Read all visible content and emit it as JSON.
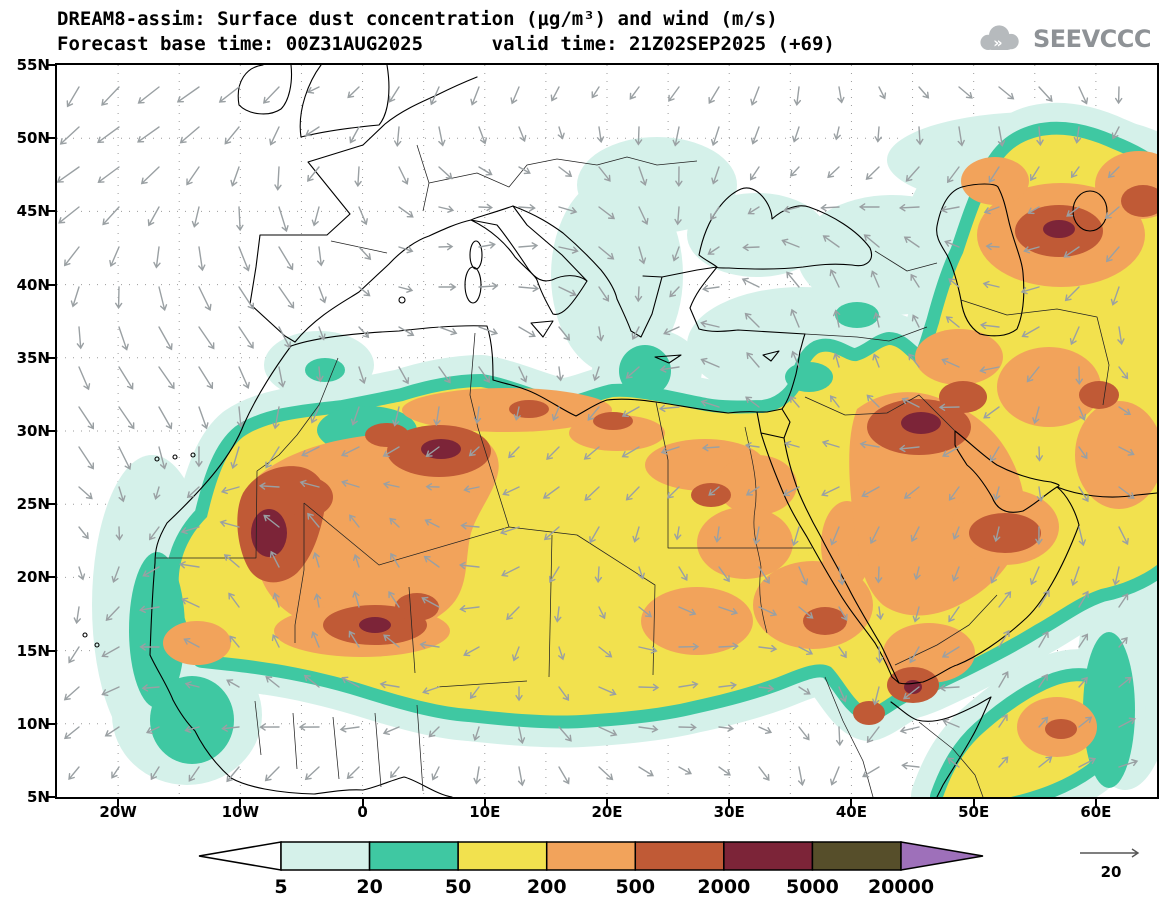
{
  "header": {
    "title_line1": "DREAM8-assim: Surface dust concentration (μg/m³) and wind (m/s)",
    "title_line2": "Forecast base time: 00Z31AUG2025      valid time: 21Z02SEP2025 (+69)",
    "logo_text": "SEEVCCC"
  },
  "axes": {
    "lat": [
      "55N",
      "50N",
      "45N",
      "40N",
      "35N",
      "30N",
      "25N",
      "20N",
      "15N",
      "10N",
      "5N"
    ],
    "lon": [
      "20W",
      "10W",
      "0",
      "10E",
      "20E",
      "30E",
      "40E",
      "50E",
      "60E"
    ]
  },
  "legend": {
    "units": "μg/m³",
    "boundaries": [
      "5",
      "20",
      "50",
      "200",
      "500",
      "2000",
      "5000",
      "20000"
    ],
    "cell_colors": [
      "#d5f1ea",
      "#3fc8a2",
      "#f2e14e",
      "#f2a35b",
      "#c05a36",
      "#7c2438",
      "#564e2a"
    ],
    "left_arrow_color": "#ffffff",
    "right_arrow_color": "#9e70ba",
    "wind_reference_label": "20"
  }
}
